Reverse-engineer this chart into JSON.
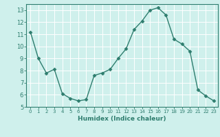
{
  "x": [
    0,
    1,
    2,
    3,
    4,
    5,
    6,
    7,
    8,
    9,
    10,
    11,
    12,
    13,
    14,
    15,
    16,
    17,
    18,
    19,
    20,
    21,
    22,
    23
  ],
  "y": [
    11.2,
    9.0,
    7.8,
    8.1,
    6.1,
    5.7,
    5.5,
    5.6,
    7.6,
    7.8,
    8.1,
    9.0,
    9.8,
    11.4,
    12.1,
    13.0,
    13.2,
    12.6,
    10.6,
    10.2,
    9.6,
    6.4,
    5.9,
    5.5
  ],
  "xlabel": "Humidex (Indice chaleur)",
  "xlim_min": -0.5,
  "xlim_max": 23.5,
  "ylim_min": 5.0,
  "ylim_max": 13.5,
  "yticks": [
    5,
    6,
    7,
    8,
    9,
    10,
    11,
    12,
    13
  ],
  "xticks": [
    0,
    1,
    2,
    3,
    4,
    5,
    6,
    7,
    8,
    9,
    10,
    11,
    12,
    13,
    14,
    15,
    16,
    17,
    18,
    19,
    20,
    21,
    22,
    23
  ],
  "xtick_labels": [
    "0",
    "1",
    "2",
    "3",
    "4",
    "5",
    "6",
    "7",
    "8",
    "9",
    "10",
    "11",
    "12",
    "13",
    "14",
    "15",
    "16",
    "17",
    "18",
    "19",
    "20",
    "21",
    "22",
    "23"
  ],
  "line_color": "#2e7d6e",
  "marker": "D",
  "marker_size": 2.5,
  "bg_color": "#cff0ec",
  "grid_color": "#ffffff",
  "spine_color": "#2e7d6e"
}
